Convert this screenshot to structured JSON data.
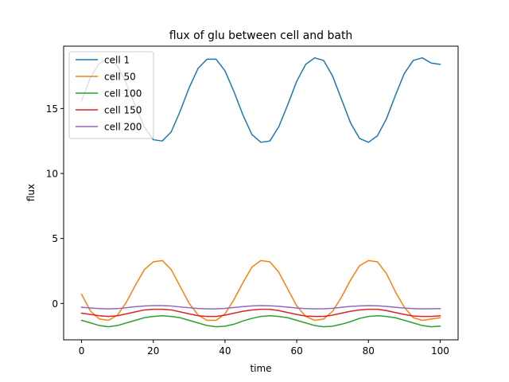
{
  "chart_data": {
    "type": "line",
    "title": "flux of glu between cell and bath",
    "xlabel": "time",
    "ylabel": "flux",
    "xlim": [
      -5,
      105
    ],
    "ylim": [
      -2.8,
      19.8
    ],
    "xticks": [
      0,
      20,
      40,
      60,
      80,
      100
    ],
    "yticks": [
      0,
      5,
      10,
      15
    ],
    "grid": false,
    "legend": "top-left",
    "series": [
      {
        "name": "cell 1",
        "color": "#1f77b4",
        "x": [
          0,
          2.5,
          5,
          7.5,
          10,
          12.5,
          15,
          17.5,
          20,
          22.5,
          25,
          27.5,
          30,
          32.5,
          35,
          37.5,
          40,
          42.5,
          45,
          47.5,
          50,
          52.5,
          55,
          57.5,
          60,
          62.5,
          65,
          67.5,
          70,
          72.5,
          75,
          77.5,
          80,
          82.5,
          85,
          87.5,
          90,
          92.5,
          95,
          97.5,
          100
        ],
        "y": [
          15.6,
          17.4,
          18.5,
          18.8,
          18.3,
          16.9,
          15.2,
          13.6,
          12.6,
          12.5,
          13.2,
          14.8,
          16.6,
          18.1,
          18.8,
          18.8,
          17.9,
          16.3,
          14.5,
          13.0,
          12.4,
          12.5,
          13.6,
          15.3,
          17.1,
          18.4,
          18.9,
          18.7,
          17.5,
          15.7,
          13.9,
          12.7,
          12.4,
          12.9,
          14.2,
          16.0,
          17.7,
          18.7,
          18.9,
          18.5,
          18.4
        ]
      },
      {
        "name": "cell 50",
        "color": "#ff7f0e",
        "x": [
          0,
          2.5,
          5,
          7.5,
          10,
          12.5,
          15,
          17.5,
          20,
          22.5,
          25,
          27.5,
          30,
          32.5,
          35,
          37.5,
          40,
          42.5,
          45,
          47.5,
          50,
          52.5,
          55,
          57.5,
          60,
          62.5,
          65,
          67.5,
          70,
          72.5,
          75,
          77.5,
          80,
          82.5,
          85,
          87.5,
          90,
          92.5,
          95,
          97.5,
          100
        ],
        "y": [
          0.7,
          -0.6,
          -1.2,
          -1.3,
          -0.9,
          0.1,
          1.4,
          2.6,
          3.2,
          3.3,
          2.6,
          1.3,
          0.0,
          -0.9,
          -1.3,
          -1.3,
          -0.8,
          0.3,
          1.6,
          2.8,
          3.3,
          3.2,
          2.4,
          1.1,
          -0.2,
          -1.0,
          -1.3,
          -1.2,
          -0.6,
          0.5,
          1.8,
          2.9,
          3.3,
          3.2,
          2.3,
          0.9,
          -0.3,
          -1.1,
          -1.3,
          -1.2,
          -1.1
        ]
      },
      {
        "name": "cell 100",
        "color": "#2ca02c",
        "x": [
          0,
          2.5,
          5,
          7.5,
          10,
          12.5,
          15,
          17.5,
          20,
          22.5,
          25,
          27.5,
          30,
          32.5,
          35,
          37.5,
          40,
          42.5,
          45,
          47.5,
          50,
          52.5,
          55,
          57.5,
          60,
          62.5,
          65,
          67.5,
          70,
          72.5,
          75,
          77.5,
          80,
          82.5,
          85,
          87.5,
          90,
          92.5,
          95,
          97.5,
          100
        ],
        "y": [
          -1.3,
          -1.5,
          -1.7,
          -1.8,
          -1.7,
          -1.5,
          -1.3,
          -1.1,
          -1.0,
          -0.95,
          -1.0,
          -1.1,
          -1.3,
          -1.5,
          -1.7,
          -1.8,
          -1.75,
          -1.6,
          -1.35,
          -1.15,
          -1.0,
          -0.95,
          -1.0,
          -1.1,
          -1.3,
          -1.5,
          -1.7,
          -1.8,
          -1.75,
          -1.6,
          -1.4,
          -1.15,
          -1.0,
          -0.95,
          -1.0,
          -1.1,
          -1.3,
          -1.5,
          -1.7,
          -1.8,
          -1.75
        ]
      },
      {
        "name": "cell 150",
        "color": "#d62728",
        "x": [
          0,
          2.5,
          5,
          7.5,
          10,
          12.5,
          15,
          17.5,
          20,
          22.5,
          25,
          27.5,
          30,
          32.5,
          35,
          37.5,
          40,
          42.5,
          45,
          47.5,
          50,
          52.5,
          55,
          57.5,
          60,
          62.5,
          65,
          67.5,
          70,
          72.5,
          75,
          77.5,
          80,
          82.5,
          85,
          87.5,
          90,
          92.5,
          95,
          97.5,
          100
        ],
        "y": [
          -0.75,
          -0.85,
          -0.95,
          -1.0,
          -0.95,
          -0.8,
          -0.65,
          -0.5,
          -0.45,
          -0.45,
          -0.5,
          -0.65,
          -0.8,
          -0.95,
          -1.0,
          -1.0,
          -0.9,
          -0.75,
          -0.6,
          -0.5,
          -0.45,
          -0.45,
          -0.55,
          -0.7,
          -0.85,
          -0.97,
          -1.0,
          -1.0,
          -0.9,
          -0.75,
          -0.6,
          -0.5,
          -0.45,
          -0.45,
          -0.55,
          -0.7,
          -0.85,
          -0.97,
          -1.0,
          -1.0,
          -0.95
        ]
      },
      {
        "name": "cell 200",
        "color": "#9467bd",
        "x": [
          0,
          2.5,
          5,
          7.5,
          10,
          12.5,
          15,
          17.5,
          20,
          22.5,
          25,
          27.5,
          30,
          32.5,
          35,
          37.5,
          40,
          42.5,
          45,
          47.5,
          50,
          52.5,
          55,
          57.5,
          60,
          62.5,
          65,
          67.5,
          70,
          72.5,
          75,
          77.5,
          80,
          82.5,
          85,
          87.5,
          90,
          92.5,
          95,
          97.5,
          100
        ],
        "y": [
          -0.3,
          -0.35,
          -0.4,
          -0.42,
          -0.4,
          -0.33,
          -0.25,
          -0.2,
          -0.17,
          -0.17,
          -0.2,
          -0.27,
          -0.33,
          -0.39,
          -0.42,
          -0.42,
          -0.38,
          -0.31,
          -0.24,
          -0.19,
          -0.17,
          -0.18,
          -0.22,
          -0.29,
          -0.35,
          -0.4,
          -0.42,
          -0.41,
          -0.37,
          -0.3,
          -0.23,
          -0.19,
          -0.17,
          -0.18,
          -0.23,
          -0.3,
          -0.36,
          -0.4,
          -0.42,
          -0.41,
          -0.4
        ]
      }
    ]
  }
}
